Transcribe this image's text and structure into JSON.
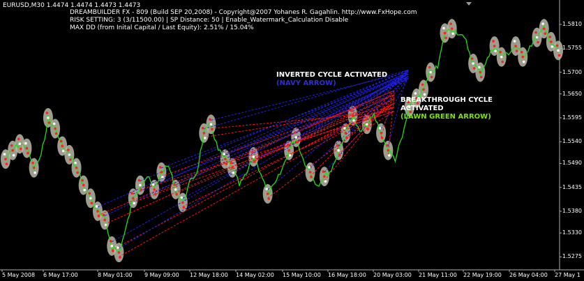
{
  "chart_header": {
    "symbol_line": "EURUSD,M30  1.4474 1.4474 1.4473 1.4473",
    "line2": "DREAMBUILDER FX - 809 (Build SEP 20,2008) - Copyright@2007 Yohanes R. Gagahlin. http://www.FxHope.com",
    "line3": "RISK SETTING: 3 (3/11500.00) | SP Distance: 50 | Enable_Watermark_Calculation Disable",
    "line4": "MAX DD (from Inital Capital / Last Equity): 2.51% / 15.04%"
  },
  "annotations": {
    "inverted_title": "INVERTED CYCLE ACTIVATED",
    "inverted_sub": "(NAVY ARROW)",
    "breakthrough_title_1": "BREAKTHROUGH CYCLE",
    "breakthrough_title_2": "ACTIVATED",
    "breakthrough_sub": "(LAWN GREEN ARROW)"
  },
  "colors": {
    "background": "#000000",
    "price_line": "#22dd11",
    "navy_lines": "#2222dd",
    "red_lines": "#ff1111",
    "halo": "#b8b8a8",
    "navy_text": "#2d2dd8",
    "lawn_text": "#7ee000"
  },
  "chart_data": {
    "type": "line",
    "y_ticks": [
      "1.5810",
      "1.5755",
      "1.5700",
      "1.5650",
      "1.5595",
      "1.5540",
      "1.5490",
      "1.5435",
      "1.5380",
      "1.5330",
      "1.5275"
    ],
    "x_ticks": [
      "5 May 2008",
      "6 May 17:00",
      "8 May 01:00",
      "9 May 09:00",
      "12 May 18:00",
      "14 May 02:00",
      "15 May 10:00",
      "16 May 18:00",
      "20 May 03:00",
      "21 May 11:00",
      "22 May 19:00",
      "26 May 04:00",
      "27 May 1"
    ],
    "ylim": [
      1.525,
      1.585
    ],
    "series": [
      {
        "values": [
          1.55,
          1.552,
          1.5535,
          1.5525,
          1.548,
          1.5505,
          1.5595,
          1.557,
          1.553,
          1.551,
          1.548,
          1.544,
          1.541,
          1.538,
          1.536,
          1.53,
          1.5285,
          1.534,
          1.541,
          1.544,
          1.546,
          1.543,
          1.547,
          1.5485,
          1.543,
          1.54,
          1.5445,
          1.547,
          1.556,
          1.558,
          1.552,
          1.55,
          1.548,
          1.544,
          1.5465,
          1.5505,
          1.547,
          1.542,
          1.544,
          1.5475,
          1.552,
          1.555,
          1.55,
          1.547,
          1.544,
          1.546,
          1.5475,
          1.552,
          1.556,
          1.56,
          1.556,
          1.558,
          1.56,
          1.556,
          1.552,
          1.55,
          1.555,
          1.562,
          1.564,
          1.566,
          1.57,
          1.571,
          1.579,
          1.58,
          1.579,
          1.577,
          1.572,
          1.57,
          1.573,
          1.576,
          1.5735,
          1.5745,
          1.576,
          1.5735,
          1.576,
          1.578,
          1.58,
          1.577,
          1.575
        ]
      }
    ]
  }
}
